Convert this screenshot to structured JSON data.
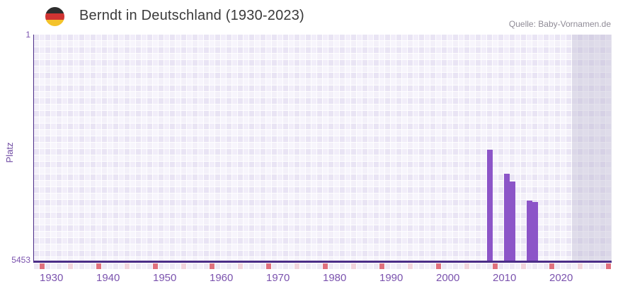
{
  "header": {
    "title": "Berndt in Deutschland (1930-2023)",
    "source": "Quelle: Baby-Vornamen.de"
  },
  "chart_data": {
    "type": "bar",
    "title": "Berndt in Deutschland (1930-2023)",
    "xlabel": "",
    "ylabel": "Platz",
    "y_axis": {
      "min": 1,
      "max": 5453,
      "inverted": true,
      "top_tick_label": "1",
      "bottom_tick_label": "5453"
    },
    "x_axis": {
      "domain_years": [
        1929,
        2030
      ],
      "tick_labels": [
        "1930",
        "1940",
        "1950",
        "1960",
        "1970",
        "1980",
        "1990",
        "2000",
        "2010",
        "2020"
      ],
      "tick_years": [
        1930,
        1940,
        1950,
        1960,
        1970,
        1980,
        1990,
        2000,
        2010,
        2020
      ],
      "decade_marker_years": [
        1930,
        1940,
        1950,
        1960,
        1970,
        1980,
        1990,
        2000,
        2010,
        2020,
        2030
      ],
      "mid_decade_marker_years": [
        1935,
        1945,
        1955,
        1965,
        1975,
        1985,
        1995,
        2005,
        2015,
        2025
      ]
    },
    "series": [
      {
        "name": "Platz",
        "points": [
          {
            "year": 2009,
            "rank": 2770
          },
          {
            "year": 2012,
            "rank": 3365
          },
          {
            "year": 2013,
            "rank": 3550
          },
          {
            "year": 2016,
            "rank": 4010
          },
          {
            "year": 2017,
            "rank": 4045
          }
        ]
      }
    ],
    "future_shaded_years": [
      2024,
      2030
    ],
    "grid": true,
    "legend": false,
    "colors": {
      "bar": "#8c55c8",
      "axis_line": "#4b2d87",
      "tick_label": "#7b53ae",
      "decade_marker": "#e0707d",
      "mid_decade_marker": "#f2d4dc",
      "future_band": "rgba(183,179,204,0.38)",
      "flag_black": "#2d2d2d",
      "flag_red": "#d03432",
      "flag_gold": "#f4c32b"
    }
  }
}
